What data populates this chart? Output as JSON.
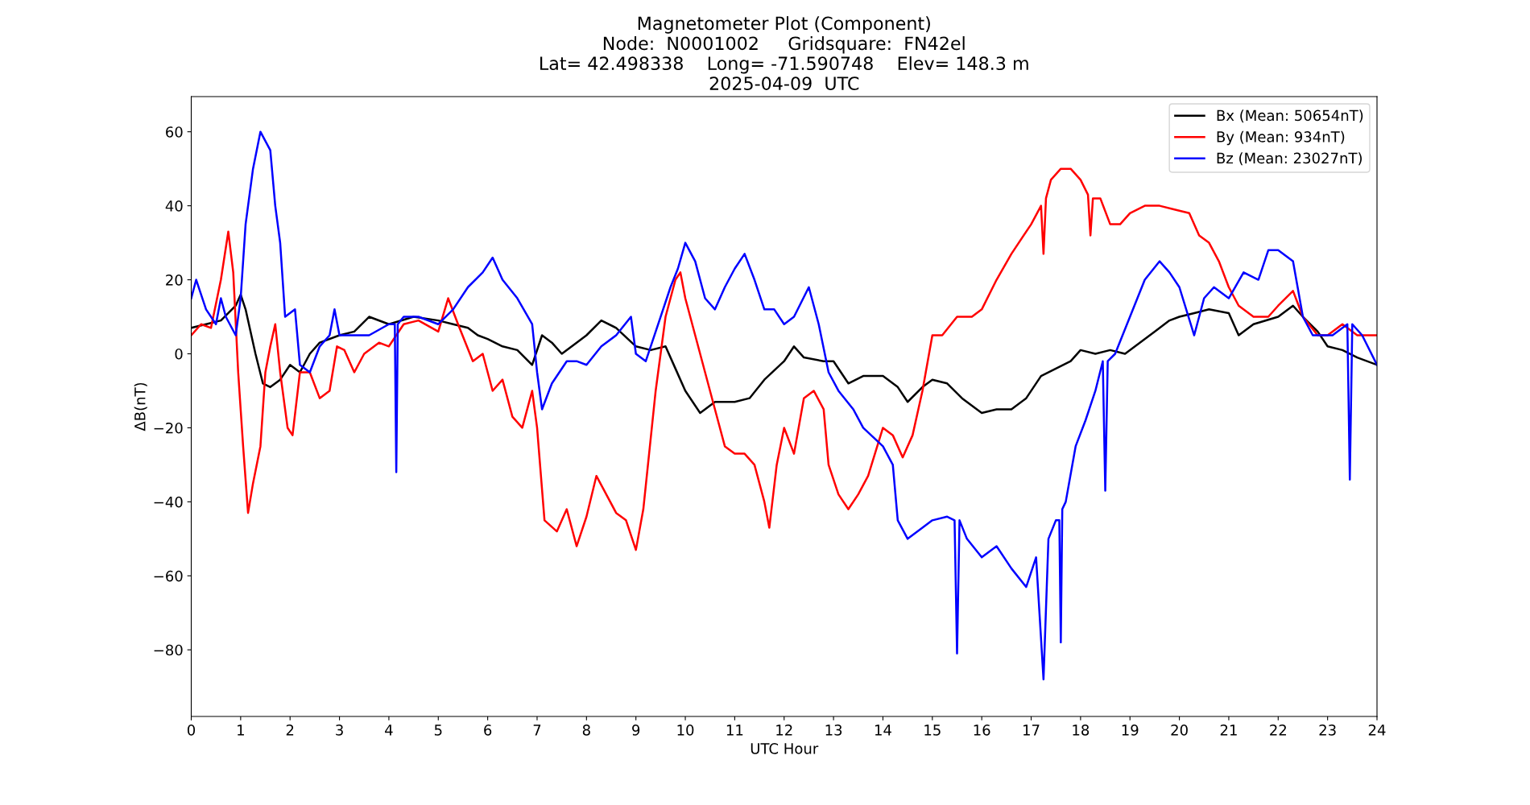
{
  "chart_data": {
    "type": "line",
    "title": "Magnetometer Plot (Component)\nNode:  N0001002     Gridsquare:  FN42el\nLat= 42.498338    Long= -71.590748    Elev= 148.3 m\n2025-04-09  UTC",
    "xlabel": "UTC Hour",
    "ylabel": "ΔB(nT)",
    "xlim": [
      0,
      24
    ],
    "xticks": [
      0,
      1,
      2,
      3,
      4,
      5,
      6,
      7,
      8,
      9,
      10,
      11,
      12,
      13,
      14,
      15,
      16,
      17,
      18,
      19,
      20,
      21,
      22,
      23,
      24
    ],
    "ylim": [
      -98,
      69.5
    ],
    "yticks": [
      -80,
      -60,
      -40,
      -20,
      0,
      20,
      40,
      60
    ],
    "grid": false,
    "legend": "top right",
    "line_style": "solid",
    "marker": "none",
    "series": [
      {
        "name": "Bx (Mean: 50654nT)",
        "color": "#000000",
        "x": [
          0,
          0.3,
          0.6,
          0.9,
          1.0,
          1.1,
          1.3,
          1.45,
          1.6,
          1.8,
          2.0,
          2.2,
          2.4,
          2.6,
          3.0,
          3.3,
          3.6,
          4.0,
          4.5,
          5.0,
          5.3,
          5.6,
          5.8,
          6.0,
          6.3,
          6.6,
          6.9,
          7.1,
          7.3,
          7.5,
          7.8,
          8.0,
          8.3,
          8.6,
          9.0,
          9.3,
          9.6,
          9.8,
          10.0,
          10.3,
          10.6,
          11.0,
          11.3,
          11.6,
          12.0,
          12.2,
          12.4,
          12.8,
          13.0,
          13.3,
          13.6,
          14.0,
          14.3,
          14.5,
          14.8,
          15.0,
          15.3,
          15.6,
          16.0,
          16.3,
          16.6,
          16.9,
          17.2,
          17.5,
          17.8,
          18.0,
          18.3,
          18.6,
          18.9,
          19.2,
          19.5,
          19.8,
          20.0,
          20.3,
          20.6,
          21.0,
          21.2,
          21.5,
          22.0,
          22.3,
          22.5,
          22.8,
          23.0,
          23.3,
          23.6,
          24
        ],
        "values": [
          7,
          8,
          9,
          13,
          16,
          12,
          0,
          -8,
          -9,
          -7,
          -3,
          -5,
          0,
          3,
          5,
          6,
          10,
          8,
          10,
          9,
          8,
          7,
          5,
          4,
          2,
          1,
          -3,
          5,
          3,
          0,
          3,
          5,
          9,
          7,
          2,
          1,
          2,
          -4,
          -10,
          -16,
          -13,
          -13,
          -12,
          -7,
          -2,
          2,
          -1,
          -2,
          -2,
          -8,
          -6,
          -6,
          -9,
          -13,
          -9,
          -7,
          -8,
          -12,
          -16,
          -15,
          -15,
          -12,
          -6,
          -4,
          -2,
          1,
          0,
          1,
          0,
          3,
          6,
          9,
          10,
          11,
          12,
          11,
          5,
          8,
          10,
          13,
          10,
          6,
          2,
          1,
          -1,
          -3
        ]
      },
      {
        "name": "By (Mean: 934nT)",
        "color": "#ff0000",
        "x": [
          0,
          0.2,
          0.4,
          0.6,
          0.75,
          0.85,
          0.95,
          1.05,
          1.15,
          1.25,
          1.4,
          1.5,
          1.6,
          1.7,
          1.8,
          1.95,
          2.05,
          2.2,
          2.4,
          2.6,
          2.8,
          2.95,
          3.1,
          3.3,
          3.5,
          3.8,
          4.0,
          4.3,
          4.6,
          5.0,
          5.2,
          5.4,
          5.7,
          5.9,
          6.1,
          6.3,
          6.5,
          6.7,
          6.9,
          7.0,
          7.15,
          7.4,
          7.6,
          7.8,
          8.0,
          8.2,
          8.4,
          8.6,
          8.8,
          9.0,
          9.15,
          9.4,
          9.6,
          9.8,
          9.9,
          10.0,
          10.2,
          10.4,
          10.6,
          10.8,
          11.0,
          11.2,
          11.4,
          11.6,
          11.7,
          11.85,
          12.0,
          12.2,
          12.4,
          12.6,
          12.8,
          12.9,
          13.1,
          13.3,
          13.5,
          13.7,
          14.0,
          14.2,
          14.4,
          14.6,
          14.8,
          15.0,
          15.2,
          15.5,
          15.8,
          16.0,
          16.3,
          16.6,
          17.0,
          17.2,
          17.25,
          17.3,
          17.4,
          17.6,
          17.8,
          18.0,
          18.15,
          18.2,
          18.25,
          18.4,
          18.6,
          18.8,
          19.0,
          19.3,
          19.6,
          19.9,
          20.2,
          20.4,
          20.6,
          20.8,
          21.0,
          21.2,
          21.5,
          21.8,
          22.0,
          22.3,
          22.5,
          22.8,
          23.0,
          23.3,
          23.6,
          24
        ],
        "values": [
          5,
          8,
          7,
          20,
          33,
          22,
          -5,
          -25,
          -43,
          -35,
          -25,
          -5,
          2,
          8,
          -5,
          -20,
          -22,
          -5,
          -5,
          -12,
          -10,
          2,
          1,
          -5,
          0,
          3,
          2,
          8,
          9,
          6,
          15,
          8,
          -2,
          0,
          -10,
          -7,
          -17,
          -20,
          -10,
          -20,
          -45,
          -48,
          -42,
          -52,
          -44,
          -33,
          -38,
          -43,
          -45,
          -53,
          -42,
          -10,
          10,
          20,
          22,
          15,
          5,
          -5,
          -15,
          -25,
          -27,
          -27,
          -30,
          -40,
          -47,
          -30,
          -20,
          -27,
          -12,
          -10,
          -15,
          -30,
          -38,
          -42,
          -38,
          -33,
          -20,
          -22,
          -28,
          -22,
          -10,
          5,
          5,
          10,
          10,
          12,
          20,
          27,
          35,
          40,
          27,
          42,
          47,
          50,
          50,
          47,
          43,
          32,
          42,
          42,
          35,
          35,
          38,
          40,
          40,
          39,
          38,
          32,
          30,
          25,
          18,
          13,
          10,
          10,
          13,
          17,
          10,
          5,
          5,
          8,
          5,
          5
        ]
      },
      {
        "name": "Bz (Mean: 23027nT)",
        "color": "#0000ff",
        "x": [
          0,
          0.1,
          0.3,
          0.5,
          0.6,
          0.7,
          0.9,
          1.0,
          1.1,
          1.25,
          1.4,
          1.6,
          1.7,
          1.8,
          1.9,
          2.1,
          2.2,
          2.4,
          2.6,
          2.8,
          2.9,
          3.0,
          3.3,
          3.6,
          4.0,
          4.12,
          4.15,
          4.18,
          4.3,
          4.6,
          5.0,
          5.3,
          5.6,
          5.9,
          6.1,
          6.3,
          6.6,
          6.9,
          7.0,
          7.1,
          7.3,
          7.6,
          7.8,
          8.0,
          8.3,
          8.6,
          8.9,
          9.0,
          9.2,
          9.5,
          9.7,
          9.85,
          10.0,
          10.2,
          10.4,
          10.6,
          10.8,
          11.0,
          11.2,
          11.4,
          11.6,
          11.8,
          12.0,
          12.2,
          12.5,
          12.7,
          12.9,
          13.1,
          13.4,
          13.6,
          14.0,
          14.2,
          14.3,
          14.5,
          14.8,
          15.0,
          15.3,
          15.45,
          15.5,
          15.55,
          15.7,
          16.0,
          16.3,
          16.6,
          16.9,
          17.1,
          17.25,
          17.35,
          17.5,
          17.57,
          17.6,
          17.63,
          17.7,
          17.9,
          18.1,
          18.3,
          18.45,
          18.5,
          18.55,
          18.7,
          19.0,
          19.3,
          19.6,
          19.8,
          20.0,
          20.3,
          20.5,
          20.7,
          21.0,
          21.3,
          21.6,
          21.8,
          22.0,
          22.3,
          22.5,
          22.7,
          22.9,
          23.1,
          23.4,
          23.45,
          23.5,
          23.7,
          24
        ],
        "values": [
          15,
          20,
          12,
          8,
          15,
          10,
          5,
          15,
          35,
          50,
          60,
          55,
          40,
          30,
          10,
          12,
          -3,
          -5,
          2,
          5,
          12,
          5,
          5,
          5,
          8,
          8,
          -32,
          8,
          10,
          10,
          8,
          12,
          18,
          22,
          26,
          20,
          15,
          8,
          -5,
          -15,
          -8,
          -2,
          -2,
          -3,
          2,
          5,
          10,
          0,
          -2,
          10,
          18,
          23,
          30,
          25,
          15,
          12,
          18,
          23,
          27,
          20,
          12,
          12,
          8,
          10,
          18,
          8,
          -5,
          -10,
          -15,
          -20,
          -25,
          -30,
          -45,
          -50,
          -47,
          -45,
          -44,
          -45,
          -81,
          -45,
          -50,
          -55,
          -52,
          -58,
          -63,
          -55,
          -88,
          -50,
          -45,
          -45,
          -78,
          -42,
          -40,
          -25,
          -18,
          -10,
          -2,
          -37,
          -2,
          0,
          10,
          20,
          25,
          22,
          18,
          5,
          15,
          18,
          15,
          22,
          20,
          28,
          28,
          25,
          10,
          5,
          5,
          5,
          8,
          -34,
          8,
          5,
          -3
        ]
      }
    ]
  }
}
